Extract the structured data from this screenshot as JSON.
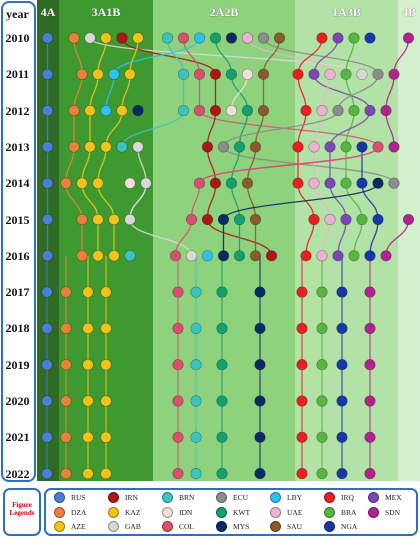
{
  "header": {
    "year_label": "year",
    "groups": [
      "4A",
      "3A1B",
      "2A2B",
      "1A3B",
      "4B"
    ]
  },
  "band_colors": [
    "#2f6b25",
    "#3e9a30",
    "#8ed27e",
    "#b3e2a6",
    "#d4efcb"
  ],
  "years": [
    "2010",
    "2011",
    "2012",
    "2013",
    "2014",
    "2015",
    "2016",
    "2017",
    "2018",
    "2019",
    "2020",
    "2021",
    "2022"
  ],
  "legend": {
    "title_line1": "Figure",
    "title_line2": "Legends",
    "items": [
      {
        "code": "RUS",
        "color": "#4a7fd4"
      },
      {
        "code": "DZA",
        "color": "#e8823a"
      },
      {
        "code": "AZE",
        "color": "#f2c21b"
      },
      {
        "code": "IRN",
        "color": "#b01515"
      },
      {
        "code": "KAZ",
        "color": "#f0c419"
      },
      {
        "code": "GAB",
        "color": "#d8d8d8"
      },
      {
        "code": "BRN",
        "color": "#3cc3c0"
      },
      {
        "code": "IDN",
        "color": "#f2dfdc"
      },
      {
        "code": "COL",
        "color": "#d9506f"
      },
      {
        "code": "ECU",
        "color": "#8c8c8c"
      },
      {
        "code": "KWT",
        "color": "#12a070"
      },
      {
        "code": "MYS",
        "color": "#0b2a63"
      },
      {
        "code": "LBY",
        "color": "#2ec0ef"
      },
      {
        "code": "UAE",
        "color": "#ebb2d2"
      },
      {
        "code": "SAU",
        "color": "#8a5a2a"
      },
      {
        "code": "IRQ",
        "color": "#e82020"
      },
      {
        "code": "BRA",
        "color": "#58b542"
      },
      {
        "code": "NGA",
        "color": "#1836a8"
      },
      {
        "code": "MEX",
        "color": "#7a48b6"
      },
      {
        "code": "SDN",
        "color": "#b0238c"
      }
    ]
  },
  "timeline": {
    "2010": [
      {
        "c": "RUS",
        "g": 0
      },
      {
        "c": "DZA",
        "g": 1
      },
      {
        "c": "GAB",
        "g": 1
      },
      {
        "c": "AZE",
        "g": 1
      },
      {
        "c": "IRN",
        "g": 1
      },
      {
        "c": "KAZ",
        "g": 1
      },
      {
        "c": "BRN",
        "g": 2
      },
      {
        "c": "COL",
        "g": 2
      },
      {
        "c": "LBY",
        "g": 2
      },
      {
        "c": "KWT",
        "g": 2
      },
      {
        "c": "MYS",
        "g": 2
      },
      {
        "c": "UAE",
        "g": 2
      },
      {
        "c": "ECU",
        "g": 2
      },
      {
        "c": "SAU",
        "g": 2
      },
      {
        "c": "IRQ",
        "g": 3
      },
      {
        "c": "MEX",
        "g": 3
      },
      {
        "c": "BRA",
        "g": 3
      },
      {
        "c": "NGA",
        "g": 3
      },
      {
        "c": "SDN",
        "g": 4
      }
    ],
    "2011": [
      {
        "c": "RUS",
        "g": 0
      },
      {
        "c": "DZA",
        "g": 1
      },
      {
        "c": "AZE",
        "g": 1
      },
      {
        "c": "LBY",
        "g": 1
      },
      {
        "c": "KAZ",
        "g": 1
      },
      {
        "c": "BRN",
        "g": 2
      },
      {
        "c": "COL",
        "g": 2
      },
      {
        "c": "IRN",
        "g": 2
      },
      {
        "c": "KWT",
        "g": 2
      },
      {
        "c": "IDN",
        "g": 2
      },
      {
        "c": "SAU",
        "g": 2
      },
      {
        "c": "IRQ",
        "g": 3
      },
      {
        "c": "MEX",
        "g": 3
      },
      {
        "c": "UAE",
        "g": 3
      },
      {
        "c": "BRA",
        "g": 3
      },
      {
        "c": "GAB",
        "g": 3
      },
      {
        "c": "ECU",
        "g": 3
      },
      {
        "c": "SDN",
        "g": 3
      }
    ],
    "2012": [
      {
        "c": "RUS",
        "g": 0
      },
      {
        "c": "DZA",
        "g": 1
      },
      {
        "c": "AZE",
        "g": 1
      },
      {
        "c": "LBY",
        "g": 1
      },
      {
        "c": "KAZ",
        "g": 1
      },
      {
        "c": "MYS",
        "g": 1
      },
      {
        "c": "BRN",
        "g": 2
      },
      {
        "c": "COL",
        "g": 2
      },
      {
        "c": "IRN",
        "g": 2
      },
      {
        "c": "IDN",
        "g": 2
      },
      {
        "c": "KWT",
        "g": 2
      },
      {
        "c": "SAU",
        "g": 2
      },
      {
        "c": "IRQ",
        "g": 3
      },
      {
        "c": "UAE",
        "g": 3
      },
      {
        "c": "ECU",
        "g": 3
      },
      {
        "c": "BRA",
        "g": 3
      },
      {
        "c": "MEX",
        "g": 3
      },
      {
        "c": "SDN",
        "g": 3
      }
    ],
    "2013": [
      {
        "c": "RUS",
        "g": 0
      },
      {
        "c": "DZA",
        "g": 1
      },
      {
        "c": "AZE",
        "g": 1
      },
      {
        "c": "KAZ",
        "g": 1
      },
      {
        "c": "BRN",
        "g": 1
      },
      {
        "c": "GAB",
        "g": 1
      },
      {
        "c": "COL",
        "g": 2
      },
      {
        "c": "IRN",
        "g": 2
      },
      {
        "c": "ECU",
        "g": 2
      },
      {
        "c": "KWT",
        "g": 2
      },
      {
        "c": "SAU",
        "g": 2
      },
      {
        "c": "IRQ",
        "g": 3
      },
      {
        "c": "UAE",
        "g": 3
      },
      {
        "c": "MEX",
        "g": 3
      },
      {
        "c": "BRA",
        "g": 3
      },
      {
        "c": "NGA",
        "g": 3
      },
      {
        "c": "COL",
        "g": 3
      },
      {
        "c": "SDN",
        "g": 3
      }
    ],
    "2014": [
      {
        "c": "RUS",
        "g": 0
      },
      {
        "c": "DZA",
        "g": 1
      },
      {
        "c": "AZE",
        "g": 1
      },
      {
        "c": "KAZ",
        "g": 1
      },
      {
        "c": "GAB",
        "g": 1
      },
      {
        "c": "IDN",
        "g": 1
      },
      {
        "c": "GAB",
        "g": 1
      },
      {
        "c": "COL",
        "g": 2
      },
      {
        "c": "IRN",
        "g": 2
      },
      {
        "c": "KWT",
        "g": 2
      },
      {
        "c": "SAU",
        "g": 2
      },
      {
        "c": "IRQ",
        "g": 3
      },
      {
        "c": "UAE",
        "g": 3
      },
      {
        "c": "MEX",
        "g": 3
      },
      {
        "c": "BRA",
        "g": 3
      },
      {
        "c": "NGA",
        "g": 3
      },
      {
        "c": "MYS",
        "g": 3
      },
      {
        "c": "ECU",
        "g": 3
      }
    ],
    "2015": [
      {
        "c": "RUS",
        "g": 0
      },
      {
        "c": "DZA",
        "g": 1
      },
      {
        "c": "AZE",
        "g": 1
      },
      {
        "c": "KAZ",
        "g": 1
      },
      {
        "c": "GAB",
        "g": 1
      },
      {
        "c": "COL",
        "g": 2
      },
      {
        "c": "IRN",
        "g": 2
      },
      {
        "c": "MYS",
        "g": 2
      },
      {
        "c": "KWT",
        "g": 2
      },
      {
        "c": "SAU",
        "g": 2
      },
      {
        "c": "IRQ",
        "g": 3
      },
      {
        "c": "UAE",
        "g": 3
      },
      {
        "c": "MEX",
        "g": 3
      },
      {
        "c": "BRA",
        "g": 3
      },
      {
        "c": "NGA",
        "g": 3
      },
      {
        "c": "SDN",
        "g": 4
      }
    ],
    "2016": [
      {
        "c": "RUS",
        "g": 0
      },
      {
        "c": "DZA",
        "g": 1
      },
      {
        "c": "AZE",
        "g": 1
      },
      {
        "c": "KAZ",
        "g": 1
      },
      {
        "c": "BRN",
        "g": 1
      },
      {
        "c": "COL",
        "g": 2
      },
      {
        "c": "GAB",
        "g": 2
      },
      {
        "c": "LBY",
        "g": 2
      },
      {
        "c": "MYS",
        "g": 2
      },
      {
        "c": "KWT",
        "g": 2
      },
      {
        "c": "SAU",
        "g": 2
      },
      {
        "c": "IRN",
        "g": 2
      },
      {
        "c": "IRQ",
        "g": 3
      },
      {
        "c": "UAE",
        "g": 3
      },
      {
        "c": "MEX",
        "g": 3
      },
      {
        "c": "BRA",
        "g": 3
      },
      {
        "c": "NGA",
        "g": 3
      },
      {
        "c": "SDN",
        "g": 3
      }
    ]
  }
}
